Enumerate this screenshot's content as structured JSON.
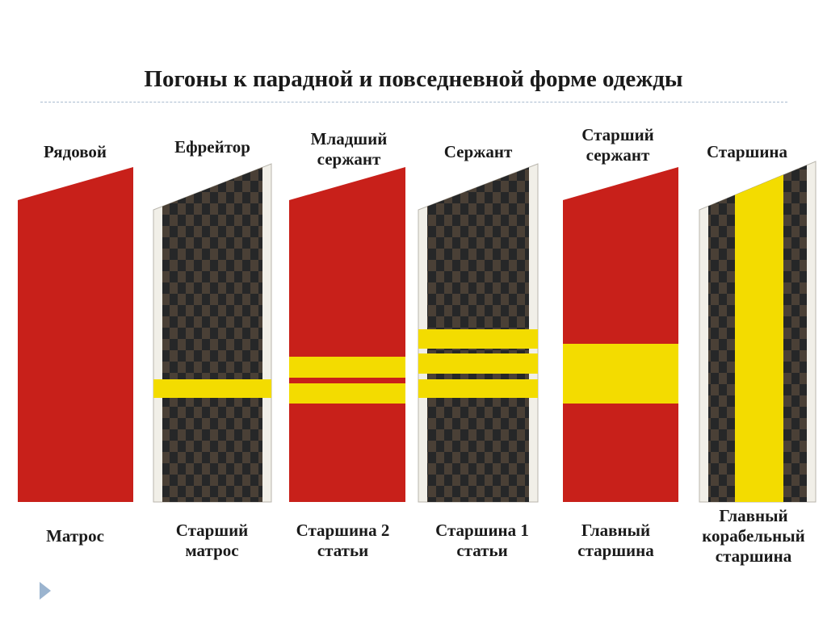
{
  "title": "Погоны к парадной и повседневной форме одежды",
  "colors": {
    "red": "#c8201a",
    "yellow": "#f3dc00",
    "checker_dark": "#262728",
    "checker_light": "#4a4036",
    "edge": "#f1efe8",
    "accent": "#9bb4cf"
  },
  "boards": [
    {
      "top_label": "Рядовой",
      "bottom_label": "Матрос",
      "field": "red",
      "stripes": 0
    },
    {
      "top_label": "Ефрейтор",
      "bottom_label": "Старший матрос",
      "field": "checker",
      "stripes": 1
    },
    {
      "top_label": "Младший сержант",
      "bottom_label": "Старшина 2 статьи",
      "field": "red",
      "stripes": 2
    },
    {
      "top_label": "Сержант",
      "bottom_label": "Старшина 1 статьи",
      "field": "checker",
      "stripes": 3
    },
    {
      "top_label": "Старший сержант",
      "bottom_label": "Главный старшина",
      "field": "red",
      "stripes": "wide"
    },
    {
      "top_label": "Старшина",
      "bottom_label": "Главный корабельный старшина",
      "field": "checker",
      "stripes": "longitudinal"
    }
  ],
  "nav": {
    "icon": "triangle-right-icon"
  }
}
